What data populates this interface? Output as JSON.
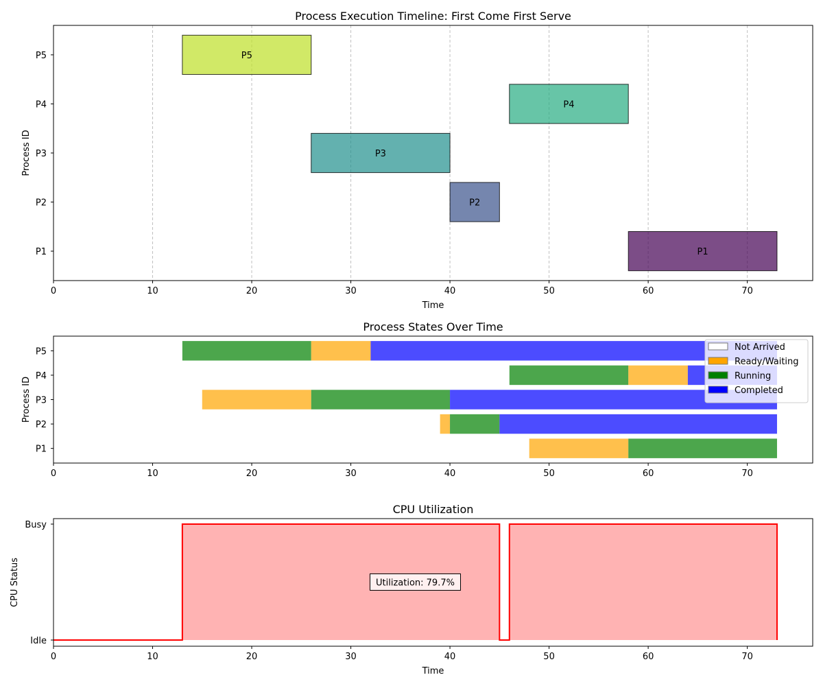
{
  "chart_data": [
    {
      "type": "gantt",
      "title": "Process Execution Timeline: First Come First Serve",
      "xlabel": "Time",
      "ylabel": "Process ID",
      "xlim": [
        0,
        76.6
      ],
      "xticks": [
        0,
        10,
        20,
        30,
        40,
        50,
        60,
        70
      ],
      "grid": "x-dashed",
      "categories": [
        "P1",
        "P2",
        "P3",
        "P4",
        "P5"
      ],
      "bars": [
        {
          "process": "P1",
          "start": 58,
          "end": 73,
          "label": "P1",
          "color": "#440154"
        },
        {
          "process": "P2",
          "start": 40,
          "end": 45,
          "label": "P2",
          "color": "#3b528b"
        },
        {
          "process": "P3",
          "start": 26,
          "end": 40,
          "label": "P3",
          "color": "#21908d"
        },
        {
          "process": "P4",
          "start": 46,
          "end": 58,
          "label": "P4",
          "color": "#27ad81"
        },
        {
          "process": "P5",
          "start": 13,
          "end": 26,
          "label": "P5",
          "color": "#bddf26"
        }
      ]
    },
    {
      "type": "gantt",
      "title": "Process States Over Time",
      "xlabel": "",
      "ylabel": "Process ID",
      "xlim": [
        0,
        76.6
      ],
      "xticks": [
        0,
        10,
        20,
        30,
        40,
        50,
        60,
        70
      ],
      "categories": [
        "P1",
        "P2",
        "P3",
        "P4",
        "P5"
      ],
      "legend_position": "upper-right",
      "legend": [
        {
          "label": "Not Arrived",
          "color": "#ffffff"
        },
        {
          "label": "Ready/Waiting",
          "color": "#ffa500"
        },
        {
          "label": "Running",
          "color": "#008000"
        },
        {
          "label": "Completed",
          "color": "#0000ff"
        }
      ],
      "segments": [
        {
          "process": "P1",
          "state": "Ready/Waiting",
          "start": 48,
          "end": 58
        },
        {
          "process": "P1",
          "state": "Running",
          "start": 58,
          "end": 73
        },
        {
          "process": "P2",
          "state": "Ready/Waiting",
          "start": 39,
          "end": 40
        },
        {
          "process": "P2",
          "state": "Running",
          "start": 40,
          "end": 45
        },
        {
          "process": "P2",
          "state": "Completed",
          "start": 45,
          "end": 73
        },
        {
          "process": "P3",
          "state": "Ready/Waiting",
          "start": 15,
          "end": 26
        },
        {
          "process": "P3",
          "state": "Running",
          "start": 26,
          "end": 40
        },
        {
          "process": "P3",
          "state": "Completed",
          "start": 40,
          "end": 73
        },
        {
          "process": "P4",
          "state": "Running",
          "start": 46,
          "end": 58
        },
        {
          "process": "P4",
          "state": "Ready/Waiting",
          "start": 58,
          "end": 64
        },
        {
          "process": "P4",
          "state": "Completed",
          "start": 64,
          "end": 73
        },
        {
          "process": "P5",
          "state": "Running",
          "start": 13,
          "end": 26
        },
        {
          "process": "P5",
          "state": "Ready/Waiting",
          "start": 26,
          "end": 32
        },
        {
          "process": "P5",
          "state": "Completed",
          "start": 32,
          "end": 73
        }
      ]
    },
    {
      "type": "area",
      "title": "CPU Utilization",
      "xlabel": "Time",
      "ylabel": "CPU Status",
      "xlim": [
        0,
        76.6
      ],
      "ylim": [
        0,
        1
      ],
      "xticks": [
        0,
        10,
        20,
        30,
        40,
        50,
        60,
        70
      ],
      "yticks": [
        {
          "value": 0,
          "label": "Idle"
        },
        {
          "value": 1,
          "label": "Busy"
        }
      ],
      "line_color": "#ff0000",
      "fill_color": "#ffb3b3",
      "x": [
        0,
        13,
        13,
        45,
        45,
        46,
        46,
        73,
        73
      ],
      "y": [
        0,
        0,
        1,
        1,
        0,
        0,
        1,
        1,
        0
      ],
      "annotation": "Utilization: 79.7%"
    }
  ]
}
